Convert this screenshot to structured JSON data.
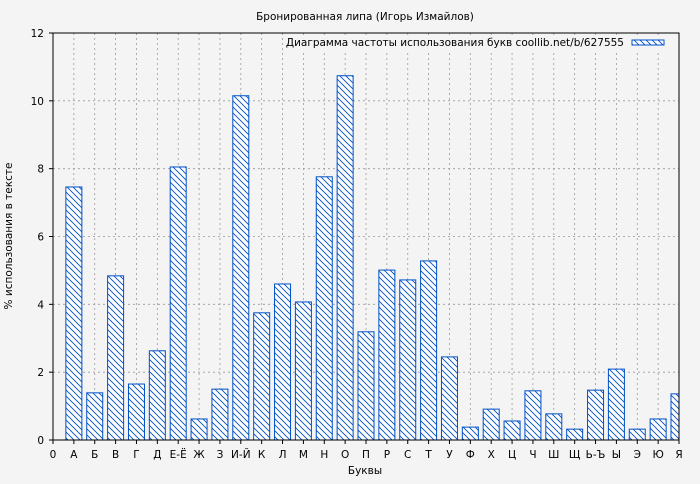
{
  "chart_data": {
    "type": "bar",
    "title": "Бронированная липа (Игорь Измайлов)",
    "xlabel": "Буквы",
    "ylabel": "% использования в тексте",
    "ylim": [
      0,
      12
    ],
    "yticks": [
      "0",
      "2",
      "4",
      "6",
      "8",
      "10",
      "12"
    ],
    "x_origin_label": "0",
    "categories": [
      "А",
      "Б",
      "В",
      "Г",
      "Д",
      "Е-Ё",
      "Ж",
      "З",
      "И-Й",
      "К",
      "Л",
      "М",
      "Н",
      "О",
      "П",
      "Р",
      "С",
      "Т",
      "У",
      "Ф",
      "Х",
      "Ц",
      "Ч",
      "Ш",
      "Щ",
      "Ь-Ъ",
      "Ы",
      "Э",
      "Ю",
      "Я"
    ],
    "series": [
      {
        "name": "Диаграмма частоты использования букв coollib.net/b/627555",
        "values": [
          7.46,
          1.39,
          4.84,
          1.65,
          2.63,
          8.05,
          0.62,
          1.5,
          10.15,
          3.75,
          4.6,
          4.07,
          7.76,
          10.74,
          3.19,
          5.01,
          4.72,
          5.28,
          2.45,
          0.38,
          0.91,
          0.56,
          1.45,
          0.77,
          0.32,
          1.47,
          2.09,
          0.32,
          0.62,
          1.36
        ]
      }
    ],
    "grid": true,
    "legend_position": "top-right",
    "colors": {
      "bar_stroke": "#0050c8",
      "bar_hatch": "#0050c8",
      "bar_fill": "#ffffff",
      "background": "#f4f4f4",
      "grid": "#999999"
    }
  }
}
